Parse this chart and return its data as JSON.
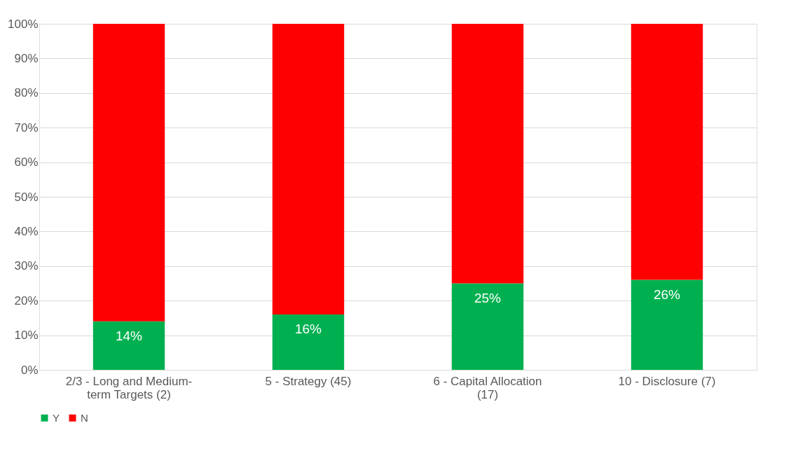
{
  "chart_data": {
    "type": "bar",
    "stacked": true,
    "categories": [
      "2/3 - Long and Medium-term Targets (2)",
      "5 - Strategy (45)",
      "6 - Capital Allocation (17)",
      "10 - Disclosure (7)"
    ],
    "series": [
      {
        "name": "Y",
        "color": "#00b050",
        "values": [
          14,
          16,
          25,
          26
        ],
        "value_labels": [
          "14%",
          "16%",
          "25%",
          "26%"
        ]
      },
      {
        "name": "N",
        "color": "#ff0000",
        "values": [
          86,
          84,
          75,
          74
        ]
      }
    ],
    "ylim": [
      0,
      100
    ],
    "yticks": [
      {
        "value": 0,
        "label": "0%"
      },
      {
        "value": 10,
        "label": "10%"
      },
      {
        "value": 20,
        "label": "20%"
      },
      {
        "value": 30,
        "label": "30%"
      },
      {
        "value": 40,
        "label": "40%"
      },
      {
        "value": 50,
        "label": "50%"
      },
      {
        "value": 60,
        "label": "60%"
      },
      {
        "value": 70,
        "label": "70%"
      },
      {
        "value": 80,
        "label": "80%"
      },
      {
        "value": 90,
        "label": "90%"
      },
      {
        "value": 100,
        "label": "100%"
      }
    ],
    "grid": "y",
    "legend": "bottom"
  }
}
